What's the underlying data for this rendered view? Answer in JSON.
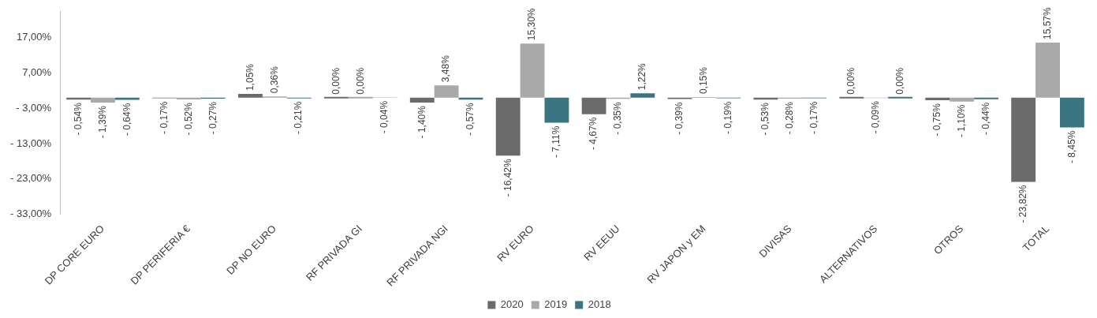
{
  "chart_data": {
    "type": "bar",
    "categories": [
      "DP CORE EURO",
      "DP PERIFERIA €",
      "DP NO EURO",
      "RF PRIVADA GI",
      "RF PRIVADA NGI",
      "RV EURO",
      "RV EEUU",
      "RV JAPON y EM",
      "DIVISAS",
      "ALTERNATIVOS",
      "OTROS",
      "TOTAL"
    ],
    "series": [
      {
        "name": "2020",
        "color": "#6b6b6b",
        "values": [
          -0.54,
          -0.17,
          1.05,
          0.0,
          -1.4,
          -16.42,
          -4.67,
          -0.39,
          -0.53,
          0.0,
          -0.75,
          -23.82
        ],
        "value_labels": [
          "- 0,54%",
          "- 0,17%",
          "1,05%",
          "0,00%",
          "- 1,40%",
          "- 16,42%",
          "- 4,67%",
          "- 0,39%",
          "- 0,53%",
          "0,00%",
          "- 0,75%",
          "- 23,82%"
        ]
      },
      {
        "name": "2019",
        "color": "#a9a9a9",
        "values": [
          -1.39,
          -0.52,
          0.36,
          0.0,
          3.48,
          15.3,
          -0.35,
          0.15,
          -0.28,
          -0.09,
          -1.1,
          15.57
        ],
        "value_labels": [
          "- 1,39%",
          "- 0,52%",
          "0,36%",
          "0,00%",
          "3,48%",
          "15,30%",
          "- 0,35%",
          "0,15%",
          "- 0,28%",
          "- 0,09%",
          "- 1,10%",
          "15,57%"
        ]
      },
      {
        "name": "2018",
        "color": "#3c7582",
        "values": [
          -0.64,
          -0.27,
          -0.21,
          -0.04,
          -0.57,
          -7.11,
          1.22,
          -0.19,
          -0.17,
          0.0,
          -0.44,
          -8.45
        ],
        "value_labels": [
          "- 0,64%",
          "- 0,27%",
          "- 0,21%",
          "- 0,04%",
          "- 0,57%",
          "- 7,11%",
          "1,22%",
          "- 0,19%",
          "- 0,17%",
          "0,00%",
          "- 0,44%",
          "- 8,45%"
        ]
      }
    ],
    "ylim": [
      -33,
      24.5
    ],
    "yticks": [
      {
        "value": 17,
        "label": "17,00%"
      },
      {
        "value": 7,
        "label": "7,00%"
      },
      {
        "value": -3,
        "label": "- 3,00%"
      },
      {
        "value": -13,
        "label": "- 13,00%"
      },
      {
        "value": -23,
        "label": "- 23,00%"
      },
      {
        "value": -33,
        "label": "- 33,00%"
      }
    ],
    "grid": false,
    "legend": "bottom"
  }
}
